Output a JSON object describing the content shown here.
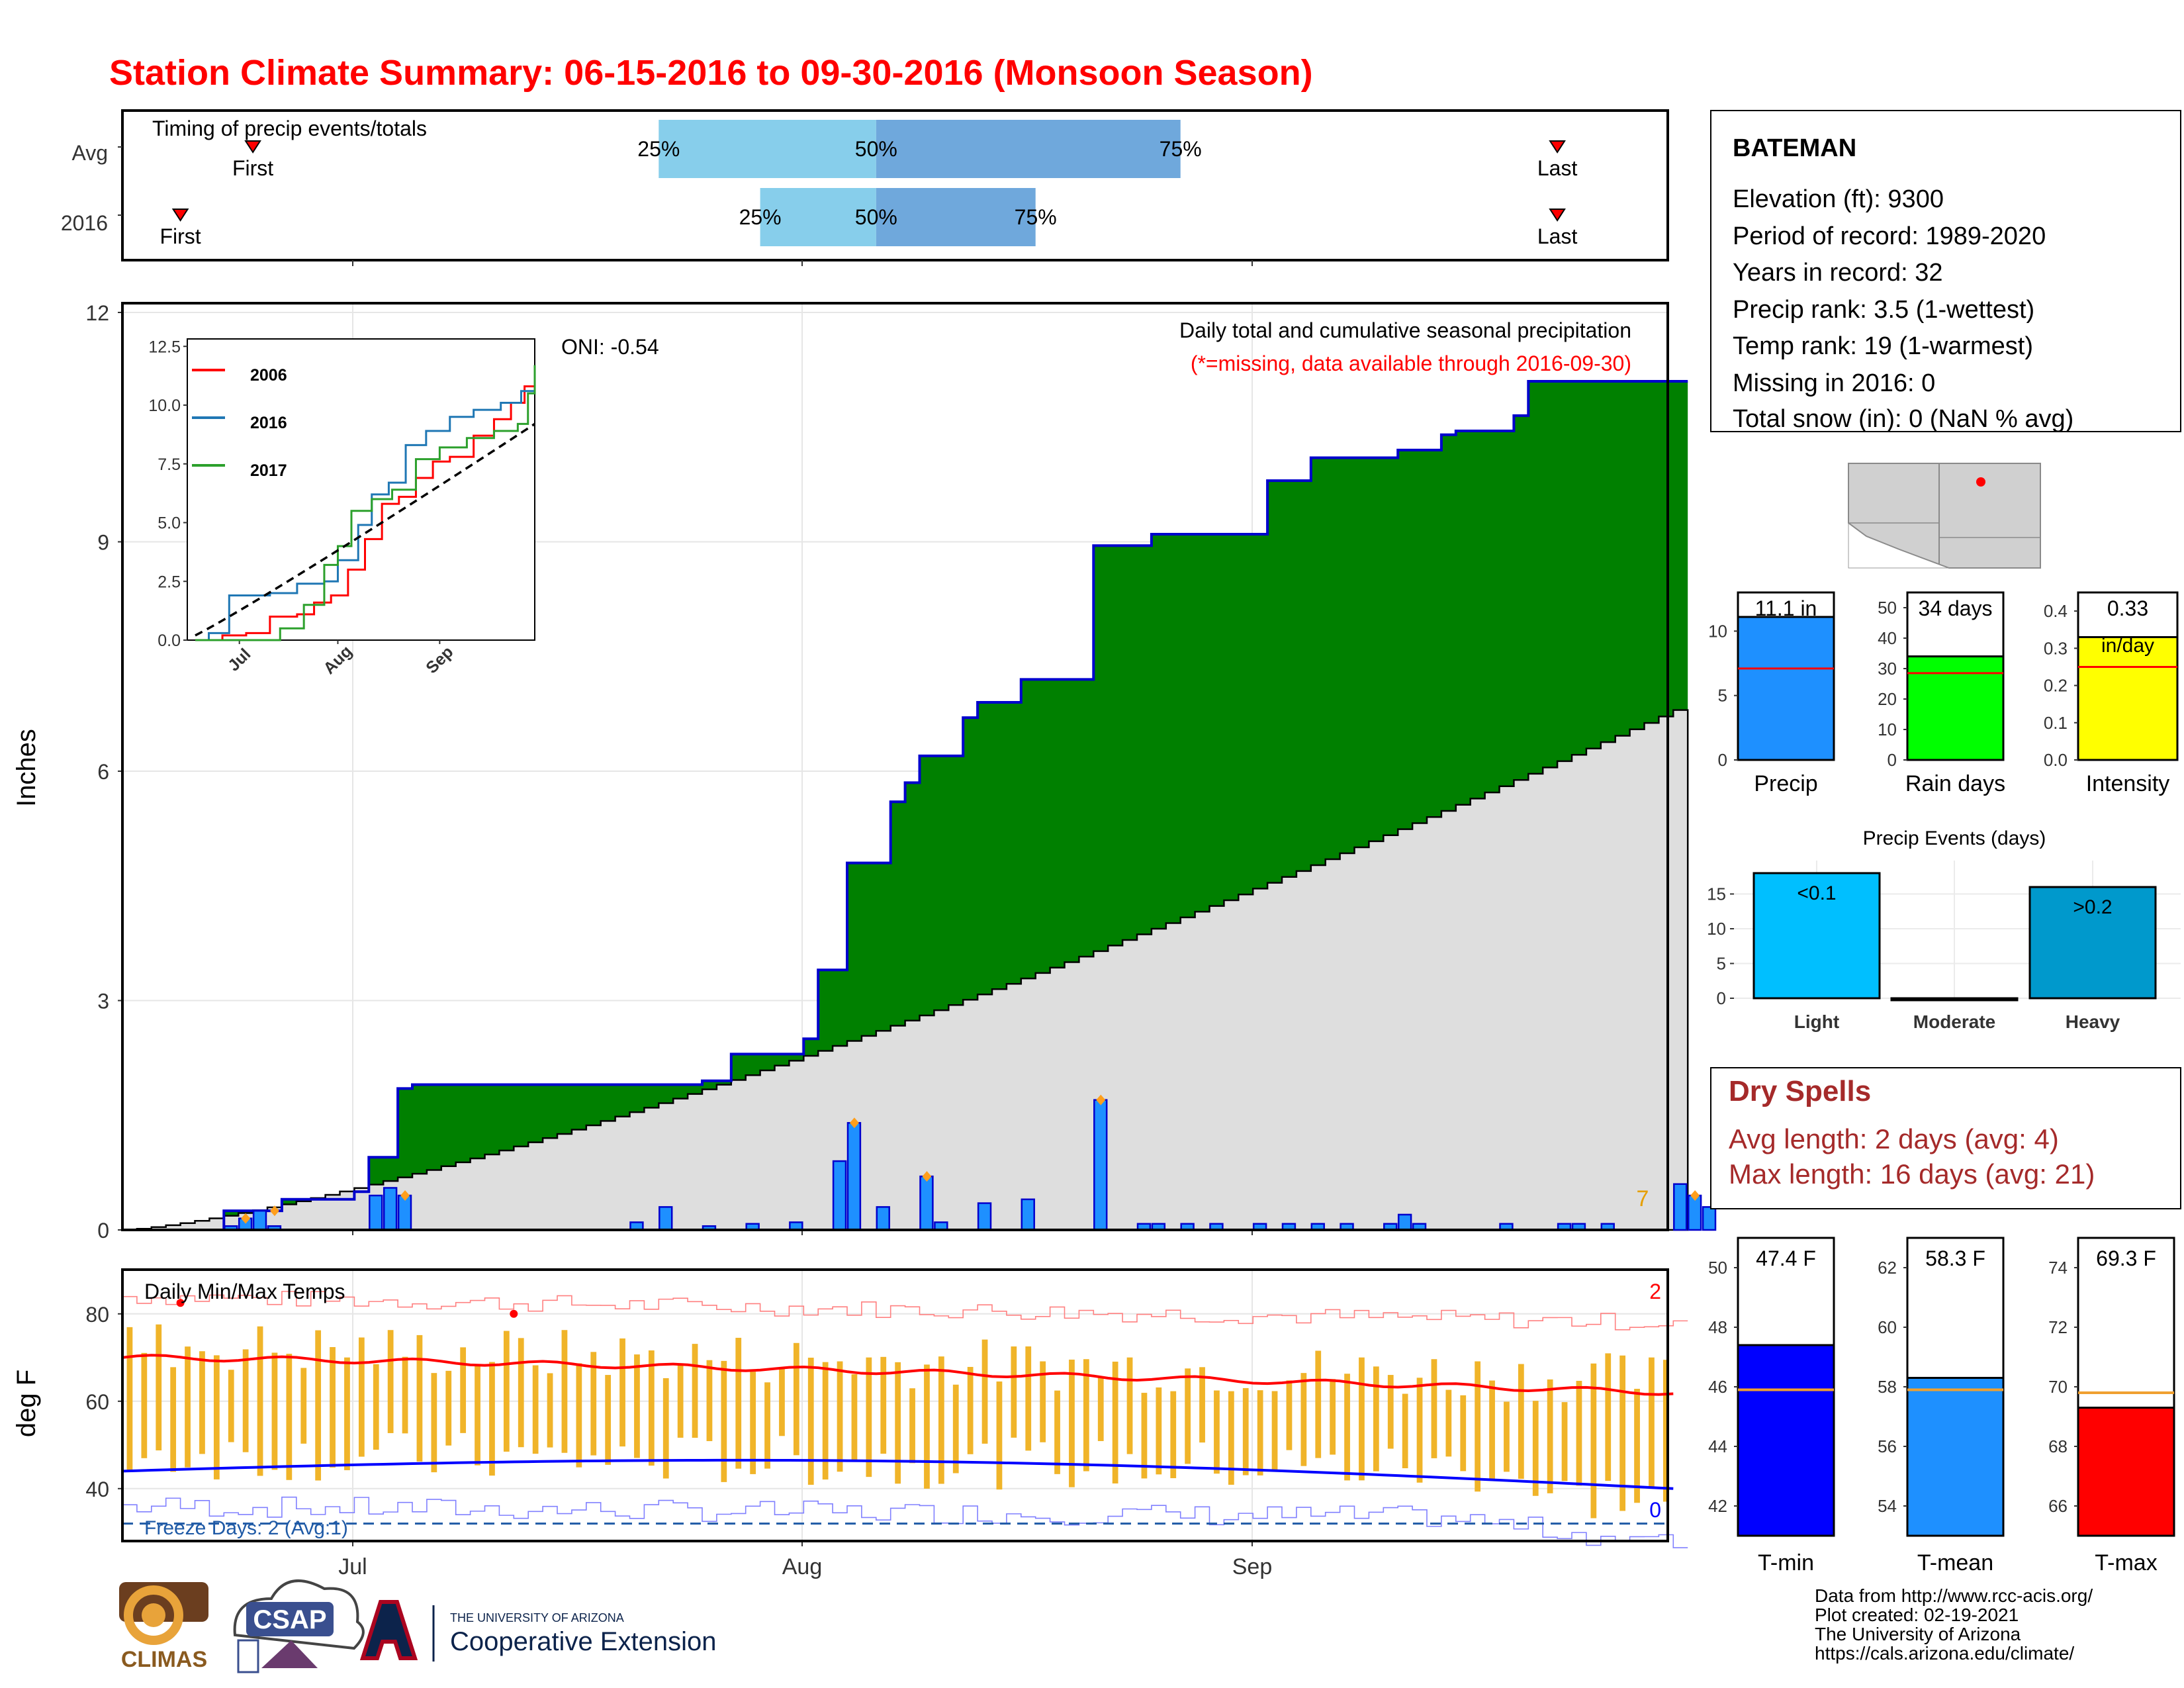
{
  "title": "Station Climate Summary: 06-15-2016 to 09-30-2016 (Monsoon Season)",
  "x_axis_months": [
    "Jul",
    "Aug",
    "Sep"
  ],
  "timing": {
    "title": "Timing of precip events/totals",
    "rows": [
      "Avg",
      "2016"
    ],
    "first_label": "First",
    "last_label": "Last",
    "pct_labels": [
      "25%",
      "50%",
      "75%"
    ]
  },
  "precip": {
    "ylabel": "Inches",
    "yticks": [
      "0",
      "3",
      "6",
      "9",
      "12"
    ],
    "oni": "ONI: -0.54",
    "note1": "Daily total and cumulative seasonal precipitation",
    "note2": "(*=missing, data available through 2016-09-30)",
    "corner_count": "7"
  },
  "inset": {
    "legend": [
      "2006",
      "2016",
      "2017"
    ],
    "yticks": [
      "0.0",
      "2.5",
      "5.0",
      "7.5",
      "10.0",
      "12.5"
    ],
    "xticks": [
      "Jul",
      "Aug",
      "Sep"
    ]
  },
  "temps": {
    "title": "Daily Min/Max Temps",
    "ylabel": "deg F",
    "yticks": [
      "40",
      "60",
      "80"
    ],
    "freeze": "Freeze Days: 2 (Avg:1)",
    "record_high_count": "2",
    "record_low_count": "0"
  },
  "station": {
    "name": "BATEMAN",
    "lines": [
      "Elevation (ft): 9300",
      "Period of record: 1989-2020",
      "Years in record: 32",
      "Precip rank: 3.5 (1-wettest)",
      "Temp rank: 19 (1-warmest)",
      "Missing in 2016: 0",
      "Total snow (in): 0 (NaN % avg)"
    ]
  },
  "mini_bars": [
    {
      "label": "Precip",
      "value_text": "11.1 in",
      "yticks": [
        "0",
        "5",
        "10"
      ],
      "color": "#1e90ff"
    },
    {
      "label": "Rain days",
      "value_text": "34 days",
      "yticks": [
        "0",
        "10",
        "20",
        "30",
        "40",
        "50"
      ],
      "color": "#00ff00"
    },
    {
      "label": "Intensity",
      "value_text": "0.33",
      "value_text2": "in/day",
      "yticks": [
        "0.0",
        "0.1",
        "0.2",
        "0.3",
        "0.4"
      ],
      "color": "#ffff00"
    }
  ],
  "events": {
    "title": "Precip Events (days)",
    "categories": [
      "Light",
      "Moderate",
      "Heavy"
    ],
    "bar_labels": [
      "<0.1",
      "",
      ">0.2"
    ],
    "yticks": [
      "0",
      "5",
      "10",
      "15"
    ]
  },
  "dry_spells": {
    "title": "Dry Spells",
    "line1": "Avg length: 2 days (avg: 4)",
    "line2": "Max length: 16 days (avg: 21)"
  },
  "temp_bars": [
    {
      "label": "T-min",
      "value_text": "47.4 F",
      "yticks": [
        "42",
        "44",
        "46",
        "48",
        "50"
      ],
      "color": "#0000ff"
    },
    {
      "label": "T-mean",
      "value_text": "58.3 F",
      "yticks": [
        "54",
        "56",
        "58",
        "60",
        "62"
      ],
      "color": "#1e90ff"
    },
    {
      "label": "T-max",
      "value_text": "69.3 F",
      "yticks": [
        "66",
        "68",
        "70",
        "72",
        "74"
      ],
      "color": "#ff0000"
    }
  ],
  "logos": {
    "climas": "CLIMAS",
    "csap": "CSAP",
    "ua_line1": "THE UNIVERSITY OF ARIZONA",
    "ua_line2": "Cooperative Extension"
  },
  "footer": [
    "Data from http://www.rcc-acis.org/",
    "Plot created: 02-19-2021",
    "The University of Arizona",
    "https://cals.arizona.edu/climate/"
  ],
  "chart_data": [
    {
      "type": "bar",
      "title": "Timing of precip events/totals",
      "rows": [
        "Avg",
        "2016"
      ],
      "avg": {
        "first": "06-24",
        "p25": "07-22",
        "p50": "08-06",
        "p75": "08-27",
        "last": "09-22"
      },
      "y2016": {
        "first": "06-19",
        "p25": "07-29",
        "p50": "08-06",
        "p75": "08-17",
        "last": "09-22"
      }
    },
    {
      "type": "area",
      "title": "Daily total and cumulative seasonal precipitation",
      "ylabel": "Inches",
      "ylim": [
        0,
        12
      ],
      "cumulative_2016": [
        [
          "06-15",
          0
        ],
        [
          "06-22",
          0.25
        ],
        [
          "06-26",
          0.4
        ],
        [
          "07-01",
          0.5
        ],
        [
          "07-02",
          0.95
        ],
        [
          "07-04",
          1.85
        ],
        [
          "07-05",
          1.9
        ],
        [
          "07-25",
          1.95
        ],
        [
          "07-27",
          2.3
        ],
        [
          "08-01",
          2.5
        ],
        [
          "08-02",
          3.4
        ],
        [
          "08-04",
          4.8
        ],
        [
          "08-07",
          5.6
        ],
        [
          "08-08",
          5.85
        ],
        [
          "08-09",
          6.2
        ],
        [
          "08-12",
          6.7
        ],
        [
          "08-13",
          6.9
        ],
        [
          "08-16",
          7.2
        ],
        [
          "08-21",
          8.95
        ],
        [
          "08-25",
          9.1
        ],
        [
          "09-02",
          9.8
        ],
        [
          "09-05",
          10.1
        ],
        [
          "09-11",
          10.2
        ],
        [
          "09-14",
          10.4
        ],
        [
          "09-15",
          10.45
        ],
        [
          "09-19",
          10.65
        ],
        [
          "09-20",
          11.1
        ],
        [
          "09-30",
          11.1
        ]
      ],
      "cumulative_avg_end": 6.8,
      "daily_bars": [
        [
          "06-22",
          0.05
        ],
        [
          "06-23",
          0.15
        ],
        [
          "06-24",
          0.25
        ],
        [
          "06-25",
          0.05
        ],
        [
          "07-02",
          0.45
        ],
        [
          "07-03",
          0.55
        ],
        [
          "07-04",
          0.45
        ],
        [
          "07-20",
          0.1
        ],
        [
          "07-22",
          0.3
        ],
        [
          "07-25",
          0.05
        ],
        [
          "07-28",
          0.08
        ],
        [
          "07-31",
          0.1
        ],
        [
          "08-03",
          0.9
        ],
        [
          "08-04",
          1.4
        ],
        [
          "08-06",
          0.3
        ],
        [
          "08-09",
          0.7
        ],
        [
          "08-10",
          0.1
        ],
        [
          "08-13",
          0.35
        ],
        [
          "08-16",
          0.4
        ],
        [
          "08-21",
          1.7
        ],
        [
          "08-24",
          0.08
        ],
        [
          "08-25",
          0.08
        ],
        [
          "08-27",
          0.08
        ],
        [
          "08-29",
          0.08
        ],
        [
          "09-01",
          0.08
        ],
        [
          "09-03",
          0.08
        ],
        [
          "09-05",
          0.08
        ],
        [
          "09-07",
          0.08
        ],
        [
          "09-10",
          0.08
        ],
        [
          "09-11",
          0.2
        ],
        [
          "09-12",
          0.08
        ],
        [
          "09-18",
          0.08
        ],
        [
          "09-22",
          0.08
        ],
        [
          "09-23",
          0.08
        ],
        [
          "09-25",
          0.08
        ],
        [
          "09-30",
          0.6
        ],
        [
          "10-01",
          0.45
        ],
        [
          "10-02",
          0.3
        ]
      ],
      "oni": -0.54
    },
    {
      "type": "line",
      "title": "Daily Min/Max Temps",
      "ylabel": "deg F",
      "ylim": [
        28,
        90
      ],
      "avg_max_start": 70,
      "avg_max_end": 62,
      "avg_min_start": 44,
      "avg_min_end": 40,
      "freeze_line": 32,
      "freeze_days": 2
    },
    {
      "type": "bar",
      "categories": [
        "Precip",
        "Rain days",
        "Intensity"
      ],
      "values": [
        11.1,
        34,
        0.33
      ],
      "averages": [
        7.1,
        28.5,
        0.25
      ]
    },
    {
      "type": "bar",
      "title": "Precip Events (days)",
      "categories": [
        "Light",
        "Moderate",
        "Heavy"
      ],
      "values": [
        18,
        0,
        16
      ]
    },
    {
      "type": "bar",
      "categories": [
        "T-min",
        "T-mean",
        "T-max"
      ],
      "values": [
        47.4,
        58.3,
        69.3
      ],
      "averages": [
        45.9,
        57.9,
        69.8
      ]
    }
  ]
}
